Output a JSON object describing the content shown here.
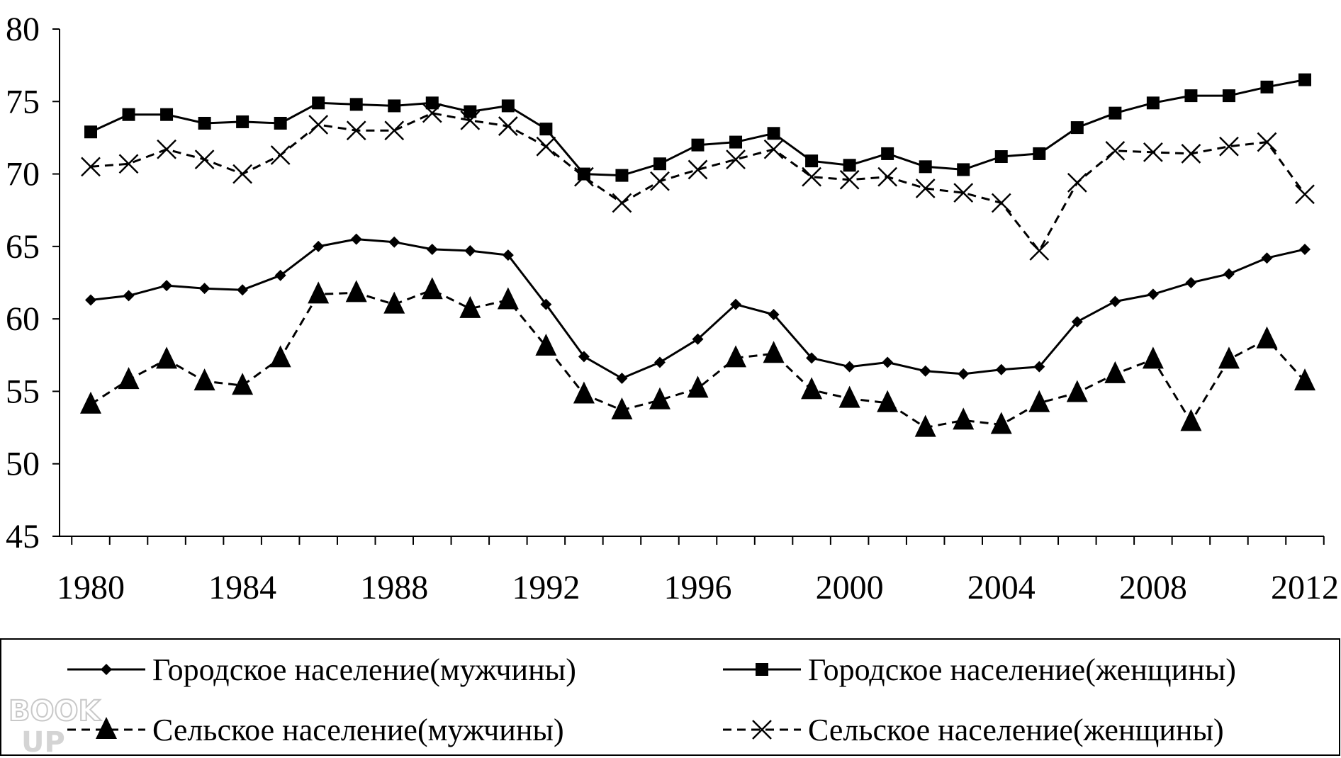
{
  "chart_data": {
    "type": "line",
    "title": "",
    "xlabel": "",
    "ylabel": "",
    "xlim": [
      1980,
      2012
    ],
    "ylim": [
      45,
      80
    ],
    "y_ticks": [
      45,
      50,
      55,
      60,
      65,
      70,
      75,
      80
    ],
    "x_tick_labels": [
      1980,
      1984,
      1988,
      1992,
      1996,
      2000,
      2004,
      2008,
      2012
    ],
    "grid": false,
    "legend_position": "bottom",
    "x": [
      1980,
      1981,
      1982,
      1983,
      1984,
      1985,
      1986,
      1987,
      1988,
      1989,
      1990,
      1991,
      1992,
      1993,
      1994,
      1995,
      1996,
      1997,
      1998,
      1999,
      2000,
      2001,
      2002,
      2003,
      2004,
      2005,
      2006,
      2007,
      2008,
      2009,
      2010,
      2011,
      2012
    ],
    "series": [
      {
        "name": "Городское население(мужчины)",
        "marker": "diamond",
        "line": "solid",
        "values": [
          61.3,
          61.6,
          62.3,
          62.1,
          62.0,
          63.0,
          65.0,
          65.5,
          65.3,
          64.8,
          64.7,
          64.4,
          61.0,
          57.4,
          55.9,
          57.0,
          58.6,
          61.0,
          60.3,
          57.3,
          56.7,
          57.0,
          56.4,
          56.2,
          56.5,
          56.7,
          59.8,
          61.2,
          61.7,
          62.5,
          63.1,
          64.2,
          64.8
        ]
      },
      {
        "name": "Городское население(женщины)",
        "marker": "square",
        "line": "solid",
        "values": [
          72.9,
          74.1,
          74.1,
          73.5,
          73.6,
          73.5,
          74.9,
          74.8,
          74.7,
          74.9,
          74.3,
          74.7,
          73.1,
          70.0,
          69.9,
          70.7,
          72.0,
          72.2,
          72.8,
          70.9,
          70.6,
          71.4,
          70.5,
          70.3,
          71.2,
          71.4,
          73.2,
          74.2,
          74.9,
          75.4,
          75.4,
          76.0,
          76.5
        ]
      },
      {
        "name": "Сельское население(мужчины)",
        "marker": "triangle",
        "line": "dashed",
        "values": [
          54.1,
          55.8,
          57.2,
          55.7,
          55.4,
          57.3,
          61.7,
          61.8,
          61.0,
          62.0,
          60.7,
          61.3,
          58.1,
          54.8,
          53.7,
          54.4,
          55.2,
          57.3,
          57.6,
          55.1,
          54.5,
          54.2,
          52.5,
          53.0,
          52.7,
          54.2,
          54.9,
          56.2,
          57.2,
          52.9,
          57.2,
          58.6,
          55.7
        ]
      },
      {
        "name": "Сельское население(женщины)",
        "marker": "x",
        "line": "dashed",
        "values": [
          70.5,
          70.7,
          71.7,
          71.0,
          70.0,
          71.3,
          73.4,
          73.0,
          73.0,
          74.2,
          73.7,
          73.3,
          71.9,
          69.8,
          68.0,
          69.5,
          70.3,
          71.0,
          71.7,
          69.8,
          69.6,
          69.8,
          69.0,
          68.7,
          68.0,
          64.7,
          69.4,
          71.6,
          71.5,
          71.4,
          71.9,
          72.2,
          68.6
        ]
      }
    ]
  },
  "watermark": {
    "text": "BOOK UP",
    "color": "#c8c8c8"
  }
}
